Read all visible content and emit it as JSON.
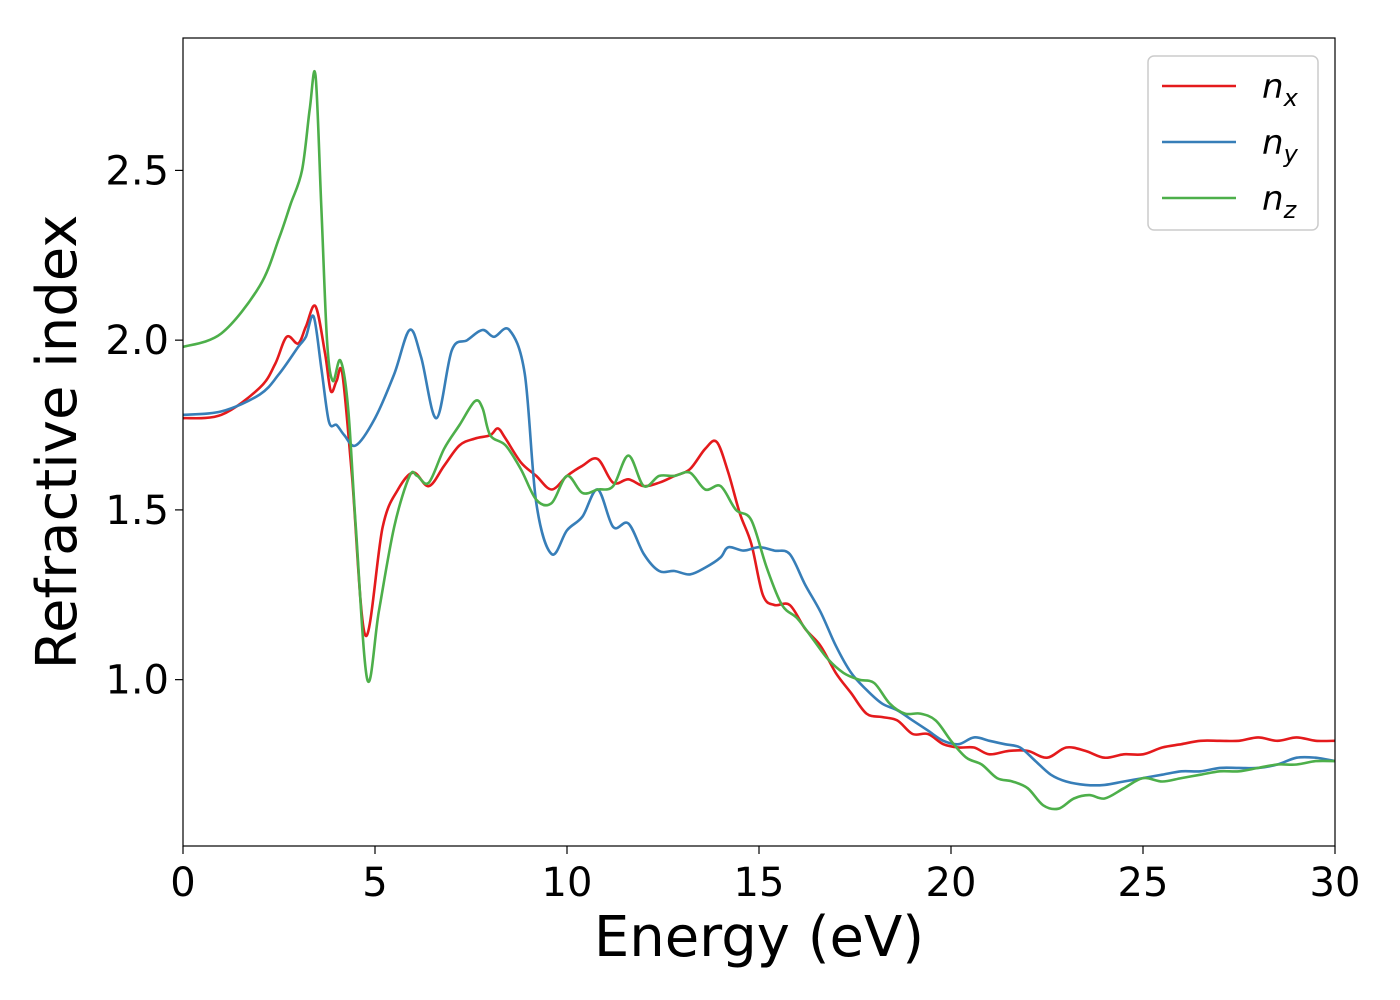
{
  "chart_data": {
    "type": "line",
    "title": "",
    "xlabel": "Energy (eV)",
    "ylabel": "Refractive index",
    "xlim": [
      0,
      30
    ],
    "ylim": [
      0.51,
      2.89
    ],
    "xticks": [
      "0",
      "5",
      "10",
      "15",
      "20",
      "25",
      "30"
    ],
    "yticks": [
      "1.0",
      "1.5",
      "2.0",
      "2.5"
    ],
    "grid": false,
    "legend_position": "top-right",
    "series": [
      {
        "name": "n",
        "subscript": "x",
        "color": "#e41a1c",
        "x": [
          0,
          1,
          2,
          2.4,
          2.7,
          3.0,
          3.2,
          3.45,
          3.7,
          3.85,
          4.0,
          4.15,
          4.4,
          4.75,
          5.2,
          5.6,
          6.0,
          6.4,
          6.8,
          7.2,
          7.6,
          8.0,
          8.2,
          8.4,
          8.8,
          9.2,
          9.6,
          10.0,
          10.4,
          10.8,
          11.2,
          11.6,
          12.0,
          12.4,
          12.8,
          13.2,
          13.6,
          13.9,
          14.2,
          14.5,
          14.8,
          15.1,
          15.4,
          15.8,
          16.2,
          16.6,
          17.0,
          17.4,
          17.8,
          18.2,
          18.6,
          19.0,
          19.4,
          19.8,
          20.2,
          20.6,
          21.0,
          21.5,
          22.0,
          22.5,
          23.0,
          23.5,
          24.0,
          24.5,
          25.0,
          25.5,
          26.0,
          26.5,
          27.0,
          27.5,
          28.0,
          28.5,
          29.0,
          29.5,
          30.0
        ],
        "values": [
          1.77,
          1.78,
          1.86,
          1.93,
          2.01,
          1.99,
          2.04,
          2.1,
          1.96,
          1.85,
          1.88,
          1.9,
          1.6,
          1.13,
          1.45,
          1.56,
          1.61,
          1.57,
          1.63,
          1.69,
          1.71,
          1.72,
          1.74,
          1.71,
          1.64,
          1.6,
          1.56,
          1.6,
          1.63,
          1.65,
          1.58,
          1.59,
          1.57,
          1.58,
          1.6,
          1.62,
          1.68,
          1.7,
          1.61,
          1.49,
          1.4,
          1.25,
          1.22,
          1.22,
          1.15,
          1.1,
          1.02,
          0.96,
          0.9,
          0.89,
          0.88,
          0.84,
          0.84,
          0.81,
          0.8,
          0.8,
          0.78,
          0.79,
          0.79,
          0.77,
          0.8,
          0.79,
          0.77,
          0.78,
          0.78,
          0.8,
          0.81,
          0.82,
          0.82,
          0.82,
          0.83,
          0.82,
          0.83,
          0.82,
          0.82
        ]
      },
      {
        "name": "n",
        "subscript": "y",
        "color": "#377eb8",
        "x": [
          0,
          1,
          2,
          2.5,
          3.0,
          3.2,
          3.4,
          3.6,
          3.8,
          4.0,
          4.2,
          4.5,
          5.0,
          5.5,
          5.9,
          6.2,
          6.6,
          7.0,
          7.4,
          7.8,
          8.1,
          8.5,
          8.9,
          9.2,
          9.6,
          10.0,
          10.4,
          10.8,
          11.2,
          11.6,
          12.0,
          12.4,
          12.8,
          13.2,
          13.6,
          14.0,
          14.2,
          14.6,
          15.0,
          15.4,
          15.8,
          16.2,
          16.6,
          17.0,
          17.4,
          17.8,
          18.2,
          18.6,
          19.0,
          19.4,
          19.8,
          20.2,
          20.6,
          21.0,
          21.4,
          21.8,
          22.2,
          22.6,
          23.0,
          23.5,
          24.0,
          24.5,
          25.0,
          25.5,
          26.0,
          26.5,
          27.0,
          27.5,
          28.0,
          28.5,
          29.0,
          29.5,
          30.0
        ],
        "values": [
          1.78,
          1.79,
          1.84,
          1.9,
          1.98,
          2.01,
          2.07,
          1.92,
          1.76,
          1.75,
          1.72,
          1.69,
          1.77,
          1.9,
          2.03,
          1.95,
          1.77,
          1.97,
          2.0,
          2.03,
          2.01,
          2.03,
          1.9,
          1.52,
          1.37,
          1.44,
          1.48,
          1.56,
          1.45,
          1.46,
          1.37,
          1.32,
          1.32,
          1.31,
          1.33,
          1.36,
          1.39,
          1.38,
          1.39,
          1.38,
          1.37,
          1.28,
          1.2,
          1.1,
          1.02,
          0.97,
          0.93,
          0.91,
          0.88,
          0.85,
          0.82,
          0.81,
          0.83,
          0.82,
          0.81,
          0.8,
          0.76,
          0.72,
          0.7,
          0.69,
          0.69,
          0.7,
          0.71,
          0.72,
          0.73,
          0.73,
          0.74,
          0.74,
          0.74,
          0.75,
          0.77,
          0.77,
          0.76
        ]
      },
      {
        "name": "n",
        "subscript": "z",
        "color": "#4daf4a",
        "x": [
          0,
          1,
          2,
          2.5,
          2.8,
          3.1,
          3.3,
          3.45,
          3.6,
          3.75,
          3.9,
          4.1,
          4.3,
          4.5,
          4.8,
          5.1,
          5.5,
          5.9,
          6.1,
          6.4,
          6.8,
          7.2,
          7.6,
          7.8,
          8.0,
          8.4,
          8.8,
          9.2,
          9.6,
          10.0,
          10.4,
          10.8,
          11.2,
          11.6,
          12.0,
          12.4,
          12.8,
          13.2,
          13.6,
          14.0,
          14.4,
          14.8,
          15.2,
          15.6,
          16.0,
          16.4,
          16.8,
          17.2,
          17.6,
          18.0,
          18.4,
          18.8,
          19.2,
          19.6,
          20.0,
          20.4,
          20.8,
          21.2,
          21.6,
          22.0,
          22.4,
          22.8,
          23.2,
          23.6,
          24.0,
          24.5,
          25.0,
          25.5,
          26.0,
          26.5,
          27.0,
          27.5,
          28.0,
          28.5,
          29.0,
          29.5,
          30.0
        ],
        "values": [
          1.98,
          2.02,
          2.16,
          2.3,
          2.4,
          2.5,
          2.68,
          2.78,
          2.4,
          2.0,
          1.88,
          1.94,
          1.8,
          1.45,
          1.0,
          1.2,
          1.45,
          1.6,
          1.6,
          1.58,
          1.68,
          1.75,
          1.82,
          1.8,
          1.72,
          1.69,
          1.62,
          1.53,
          1.52,
          1.6,
          1.55,
          1.56,
          1.57,
          1.66,
          1.57,
          1.6,
          1.6,
          1.61,
          1.56,
          1.57,
          1.5,
          1.47,
          1.33,
          1.22,
          1.18,
          1.12,
          1.06,
          1.02,
          1.0,
          0.99,
          0.93,
          0.9,
          0.9,
          0.88,
          0.82,
          0.77,
          0.75,
          0.71,
          0.7,
          0.68,
          0.63,
          0.62,
          0.65,
          0.66,
          0.65,
          0.68,
          0.71,
          0.7,
          0.71,
          0.72,
          0.73,
          0.73,
          0.74,
          0.75,
          0.75,
          0.76,
          0.76
        ]
      }
    ]
  }
}
